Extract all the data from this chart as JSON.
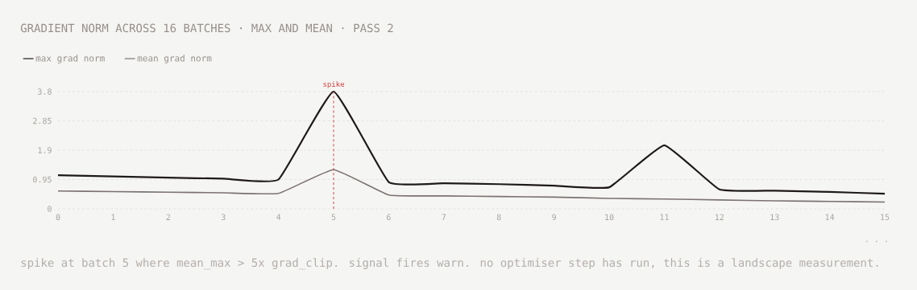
{
  "chart_data": {
    "type": "line",
    "title": "GRADIENT NORM ACROSS 16 BATCHES · MAX AND MEAN · PASS 2",
    "x": [
      0,
      1,
      2,
      3,
      4,
      5,
      6,
      7,
      8,
      9,
      10,
      11,
      12,
      13,
      14,
      15
    ],
    "series": [
      {
        "name": "max grad norm",
        "color": "#1e1a1a",
        "values": [
          1.09,
          1.05,
          1.01,
          0.98,
          0.95,
          3.8,
          0.87,
          0.83,
          0.8,
          0.75,
          0.7,
          2.06,
          0.63,
          0.59,
          0.55,
          0.49
        ]
      },
      {
        "name": "mean grad norm",
        "color": "#7a7270",
        "values": [
          0.58,
          0.56,
          0.54,
          0.52,
          0.5,
          1.27,
          0.45,
          0.42,
          0.4,
          0.38,
          0.34,
          0.32,
          0.29,
          0.26,
          0.24,
          0.22
        ]
      }
    ],
    "xlim": [
      0,
      15
    ],
    "ylim": [
      0,
      3.8
    ],
    "xticks": [
      0,
      1,
      2,
      3,
      4,
      5,
      6,
      7,
      8,
      9,
      10,
      11,
      12,
      13,
      14,
      15
    ],
    "yticks": [
      0,
      0.95,
      1.9,
      2.85,
      3.8
    ],
    "grid": "y",
    "legend": "top left",
    "line_style": "solid",
    "ref_lines": [
      {
        "axis": "x",
        "value": 5,
        "label": "spike",
        "color": "#d04040",
        "line_style": "dashed"
      }
    ],
    "annotations": [
      "· · ·",
      "spike at batch 5 where mean_max > 5x grad_clip. signal fires warn. no optimiser step has run, this is a landscape measurement."
    ]
  }
}
